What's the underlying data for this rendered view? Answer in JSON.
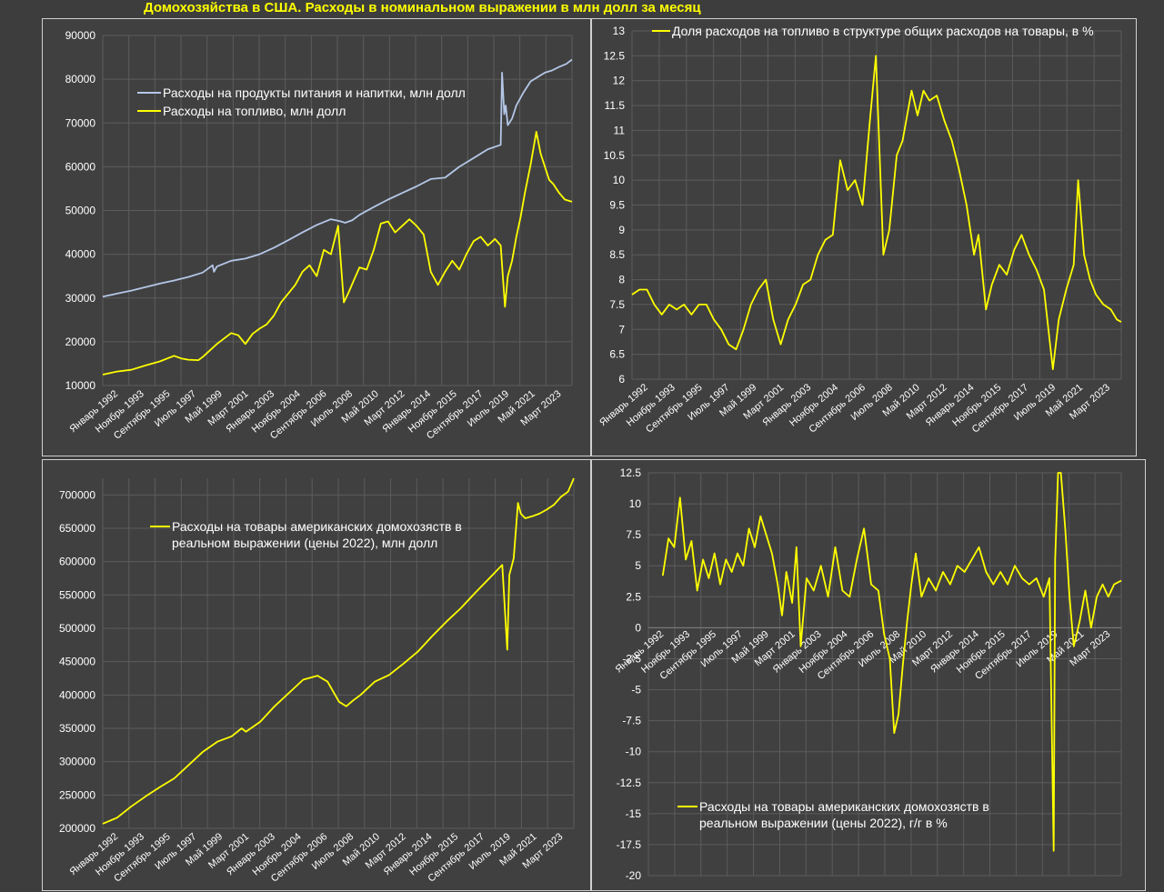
{
  "page": {
    "title": "Домохозяйства в США. Расходы в номинальном выражении в млн долл за месяц"
  },
  "colors": {
    "yellow": "#ffff00",
    "blue": "#b4c7e7",
    "grid": "#5c5c5c",
    "text": "#ffffff"
  },
  "x_categories": [
    "Январь 1992",
    "Ноябрь 1993",
    "Сентябрь 1995",
    "Июль 1997",
    "Май 1999",
    "Март 2001",
    "Январь 2003",
    "Ноябрь 2004",
    "Сентябрь 2006",
    "Июль 2008",
    "Май 2010",
    "Март 2012",
    "Январь 2014",
    "Ноябрь 2015",
    "Сентябрь 2017",
    "Июль 2019",
    "Май 2021",
    "Март 2023"
  ],
  "chart_data": [
    {
      "type": "line",
      "title": "",
      "x_range": [
        1992.0,
        2024.9
      ],
      "ylim": [
        10000,
        90000
      ],
      "y_ticks": [
        "10000",
        "20000",
        "30000",
        "40000",
        "50000",
        "60000",
        "70000",
        "80000",
        "90000"
      ],
      "legend_position": "top-left",
      "series": [
        {
          "name": "Расходы на продукты питания и напитки, млн долл",
          "color": "#b4c7e7",
          "x": [
            1992.0,
            1993.0,
            1994.0,
            1995.0,
            1996.0,
            1997.0,
            1998.0,
            1999.0,
            1999.7,
            1999.8,
            2000.0,
            2001.0,
            2002.0,
            2003.0,
            2004.0,
            2005.0,
            2006.0,
            2007.0,
            2008.0,
            2008.6,
            2009.0,
            2009.5,
            2010.0,
            2011.0,
            2012.0,
            2013.0,
            2014.0,
            2015.0,
            2016.0,
            2017.0,
            2018.0,
            2019.0,
            2019.9,
            2020.0,
            2020.15,
            2020.25,
            2020.4,
            2020.7,
            2021.0,
            2021.5,
            2022.0,
            2022.5,
            2023.0,
            2023.5,
            2024.0,
            2024.5,
            2024.9
          ],
          "y": [
            30300,
            31000,
            31700,
            32500,
            33300,
            34000,
            34800,
            35800,
            37500,
            36000,
            37200,
            38500,
            39000,
            40000,
            41500,
            43200,
            45000,
            46700,
            48000,
            47600,
            47200,
            47800,
            49000,
            50800,
            52500,
            54000,
            55500,
            57200,
            57500,
            60000,
            62000,
            64000,
            65000,
            81500,
            72000,
            74000,
            69500,
            71000,
            74000,
            77000,
            79500,
            80500,
            81500,
            82000,
            82800,
            83500,
            84500
          ]
        },
        {
          "name": "Расходы на топливо, млн долл",
          "color": "#ffff00",
          "x": [
            1992.0,
            1993.0,
            1994.0,
            1995.0,
            1996.0,
            1997.0,
            1997.5,
            1998.0,
            1998.7,
            1999.0,
            2000.0,
            2001.0,
            2001.5,
            2002.0,
            2002.5,
            2003.0,
            2003.5,
            2004.0,
            2004.5,
            2005.0,
            2005.5,
            2006.0,
            2006.5,
            2007.0,
            2007.5,
            2008.0,
            2008.5,
            2008.9,
            2009.2,
            2009.6,
            2010.0,
            2010.5,
            2011.0,
            2011.5,
            2012.0,
            2012.5,
            2013.0,
            2013.5,
            2014.0,
            2014.5,
            2015.0,
            2015.5,
            2016.0,
            2016.5,
            2017.0,
            2017.5,
            2018.0,
            2018.5,
            2019.0,
            2019.5,
            2019.9,
            2020.2,
            2020.4,
            2020.7,
            2021.0,
            2021.3,
            2021.6,
            2022.0,
            2022.4,
            2022.7,
            2023.0,
            2023.3,
            2023.6,
            2024.0,
            2024.4,
            2024.9
          ],
          "y": [
            12500,
            13200,
            13600,
            14600,
            15500,
            16800,
            16200,
            15900,
            15800,
            16500,
            19500,
            22000,
            21500,
            19500,
            21800,
            23000,
            24000,
            26000,
            29000,
            31000,
            33000,
            36000,
            37500,
            35000,
            41000,
            40000,
            46500,
            29000,
            31000,
            34000,
            37000,
            36500,
            41000,
            47000,
            47500,
            45000,
            46500,
            48000,
            46500,
            44500,
            36000,
            33000,
            36000,
            38500,
            36500,
            40000,
            43000,
            44000,
            42000,
            43500,
            42000,
            28000,
            35000,
            38500,
            44000,
            48500,
            54000,
            60500,
            68000,
            63000,
            60000,
            57000,
            56000,
            54000,
            52500,
            52000
          ]
        }
      ]
    },
    {
      "type": "line",
      "title": "",
      "x_range": [
        1992.0,
        2024.9
      ],
      "ylim": [
        6,
        13
      ],
      "y_ticks": [
        "6",
        "6.5",
        "7",
        "7.5",
        "8",
        "8.5",
        "9",
        "9.5",
        "10",
        "10.5",
        "11",
        "11.5",
        "12",
        "12.5",
        "13"
      ],
      "legend_position": "top",
      "series": [
        {
          "name": "Доля расходов на топливо в структуре общих расходов на товары, в %",
          "color": "#ffff00",
          "x": [
            1992.0,
            1992.5,
            1993.0,
            1993.5,
            1994.0,
            1994.5,
            1995.0,
            1995.5,
            1996.0,
            1996.5,
            1997.0,
            1997.5,
            1998.0,
            1998.5,
            1999.0,
            1999.5,
            2000.0,
            2000.5,
            2001.0,
            2001.5,
            2002.0,
            2002.5,
            2003.0,
            2003.5,
            2004.0,
            2004.5,
            2005.0,
            2005.5,
            2006.0,
            2006.5,
            2007.0,
            2007.5,
            2008.0,
            2008.4,
            2008.9,
            2009.3,
            2009.8,
            2010.2,
            2010.8,
            2011.2,
            2011.6,
            2012.0,
            2012.5,
            2013.0,
            2013.5,
            2014.0,
            2014.5,
            2015.0,
            2015.3,
            2015.8,
            2016.2,
            2016.7,
            2017.2,
            2017.7,
            2018.2,
            2018.7,
            2019.2,
            2019.7,
            2020.0,
            2020.3,
            2020.7,
            2021.2,
            2021.7,
            2022.0,
            2022.4,
            2022.8,
            2023.2,
            2023.7,
            2024.2,
            2024.6,
            2024.9
          ],
          "y": [
            7.7,
            7.8,
            7.8,
            7.5,
            7.3,
            7.5,
            7.4,
            7.5,
            7.3,
            7.5,
            7.5,
            7.2,
            7.0,
            6.7,
            6.6,
            7.0,
            7.5,
            7.8,
            8.0,
            7.2,
            6.7,
            7.2,
            7.5,
            7.9,
            8.0,
            8.5,
            8.8,
            8.9,
            10.4,
            9.8,
            10.0,
            9.5,
            11.2,
            12.5,
            8.5,
            9.0,
            10.5,
            10.8,
            11.8,
            11.3,
            11.8,
            11.6,
            11.7,
            11.2,
            10.8,
            10.2,
            9.5,
            8.5,
            8.9,
            7.4,
            7.9,
            8.3,
            8.1,
            8.6,
            8.9,
            8.5,
            8.2,
            7.8,
            7.0,
            6.2,
            7.2,
            7.8,
            8.3,
            10.0,
            8.5,
            8.0,
            7.7,
            7.5,
            7.4,
            7.2,
            7.15
          ]
        }
      ]
    },
    {
      "type": "line",
      "title": "",
      "x_range": [
        1992.0,
        2024.9
      ],
      "ylim": [
        200000,
        725000
      ],
      "y_ticks": [
        "200000",
        "250000",
        "300000",
        "350000",
        "400000",
        "450000",
        "500000",
        "550000",
        "600000",
        "650000",
        "700000"
      ],
      "legend_position": "top-left",
      "series": [
        {
          "name": "Расходы на товары американских домохозяств в реальном выражении (цены 2022), млн долл",
          "color": "#ffff00",
          "x": [
            1992.0,
            1993.0,
            1994.0,
            1995.0,
            1996.0,
            1997.0,
            1998.0,
            1999.0,
            2000.0,
            2001.0,
            2001.7,
            2002.0,
            2003.0,
            2004.0,
            2005.0,
            2006.0,
            2007.0,
            2007.7,
            2008.5,
            2009.0,
            2009.5,
            2010.0,
            2011.0,
            2012.0,
            2013.0,
            2014.0,
            2015.0,
            2016.0,
            2017.0,
            2018.0,
            2019.0,
            2019.9,
            2020.25,
            2020.4,
            2020.7,
            2021.0,
            2021.2,
            2021.5,
            2022.0,
            2022.5,
            2023.0,
            2023.5,
            2024.0,
            2024.5,
            2024.9
          ],
          "y": [
            207000,
            216000,
            233000,
            248000,
            262000,
            275000,
            295000,
            315000,
            330000,
            338000,
            350000,
            345000,
            360000,
            383000,
            403000,
            423000,
            429000,
            420000,
            390000,
            383000,
            392000,
            400000,
            420000,
            430000,
            447000,
            465000,
            488000,
            510000,
            530000,
            553000,
            575000,
            595000,
            468000,
            580000,
            605000,
            688000,
            672000,
            665000,
            668000,
            672000,
            678000,
            685000,
            697000,
            705000,
            725000
          ]
        }
      ]
    },
    {
      "type": "line",
      "title": "",
      "x_range": [
        1992.0,
        2024.9
      ],
      "ylim": [
        -20,
        12.5
      ],
      "y_ticks": [
        "-20",
        "-17.5",
        "-15",
        "-12.5",
        "-10",
        "-7.5",
        "-5",
        "-2.5",
        "0",
        "2.5",
        "5",
        "7.5",
        "10",
        "12.5"
      ],
      "legend_position": "bottom",
      "series": [
        {
          "name": "Расходы на товары американских домохозяств в реальном выражении (цены 2022), г/г в %",
          "color": "#ffff00",
          "x": [
            1993.0,
            1993.4,
            1993.8,
            1994.2,
            1994.6,
            1995.0,
            1995.4,
            1995.8,
            1996.2,
            1996.6,
            1997.0,
            1997.4,
            1997.8,
            1998.2,
            1998.6,
            1999.0,
            1999.4,
            1999.8,
            2000.2,
            2000.6,
            2001.0,
            2001.3,
            2001.6,
            2002.0,
            2002.3,
            2002.6,
            2003.0,
            2003.5,
            2004.0,
            2004.5,
            2005.0,
            2005.5,
            2006.0,
            2006.5,
            2007.0,
            2007.5,
            2008.0,
            2008.4,
            2008.8,
            2009.1,
            2009.4,
            2009.7,
            2010.0,
            2010.3,
            2010.6,
            2011.0,
            2011.5,
            2012.0,
            2012.5,
            2013.0,
            2013.5,
            2014.0,
            2014.5,
            2015.0,
            2015.5,
            2016.0,
            2016.5,
            2017.0,
            2017.5,
            2018.0,
            2018.5,
            2019.0,
            2019.5,
            2019.9,
            2020.2,
            2020.3,
            2020.5,
            2020.7,
            2021.0,
            2021.3,
            2021.6,
            2022.0,
            2022.4,
            2022.8,
            2023.2,
            2023.6,
            2024.0,
            2024.4,
            2024.9
          ],
          "y": [
            4.2,
            7.2,
            6.5,
            10.5,
            5.5,
            7.0,
            3.0,
            5.5,
            4.0,
            6.0,
            3.5,
            5.5,
            4.5,
            6.0,
            5.0,
            8.0,
            6.5,
            9.0,
            7.5,
            6.0,
            3.5,
            1.0,
            4.5,
            2.0,
            6.5,
            -1.5,
            4.0,
            3.0,
            5.0,
            2.5,
            6.5,
            3.0,
            2.5,
            5.5,
            8.0,
            3.5,
            3.0,
            -0.5,
            -2.5,
            -8.5,
            -7.0,
            -3.0,
            0.5,
            3.5,
            6.0,
            2.5,
            4.0,
            3.0,
            4.5,
            3.5,
            5.0,
            4.5,
            5.5,
            6.5,
            4.5,
            3.5,
            4.5,
            3.5,
            5.0,
            4.0,
            3.5,
            4.0,
            2.5,
            4.0,
            -18.0,
            5.5,
            12.5,
            13.0,
            8.0,
            2.5,
            -1.5,
            0.5,
            3.0,
            0.0,
            2.5,
            3.5,
            2.5,
            3.5,
            3.8
          ]
        }
      ]
    }
  ]
}
